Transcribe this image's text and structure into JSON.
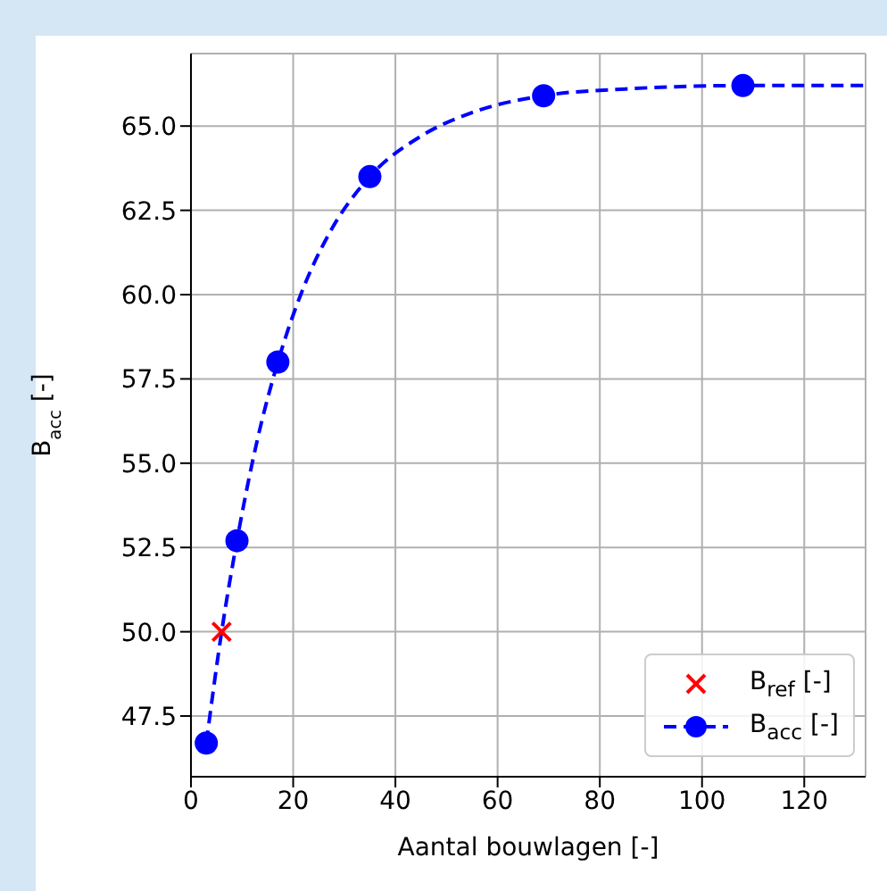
{
  "chart_data": {
    "type": "scatter",
    "xlabel": "Aantal bouwlagen [-]",
    "ylabel": "B$_{acc}$ [-]",
    "xlim": [
      0,
      132
    ],
    "xticks": [
      0,
      20,
      40,
      60,
      80,
      100,
      120
    ],
    "ylim": [
      45.7,
      67.15
    ],
    "yticks": [
      {
        "value": 47.5,
        "label": "47.5"
      },
      {
        "value": 50,
        "label": "50.0"
      },
      {
        "value": 52.5,
        "label": "52.5"
      },
      {
        "value": 55,
        "label": "55.0"
      },
      {
        "value": 57.5,
        "label": "57.5"
      },
      {
        "value": 60,
        "label": "60.0"
      },
      {
        "value": 62.5,
        "label": "62.5"
      },
      {
        "value": 65,
        "label": "65.0"
      }
    ],
    "grid": true,
    "legend": "bottom right",
    "series": [
      {
        "type": "line",
        "color": "#0000ff",
        "line_style": "dashed",
        "marker": "none",
        "x": [
          3,
          6,
          9,
          13,
          17,
          22,
          27,
          35,
          45,
          55,
          69,
          85,
          108,
          132
        ],
        "values": [
          46.7,
          50.0,
          52.7,
          55.7,
          58.0,
          60.2,
          61.8,
          63.5,
          64.7,
          65.4,
          65.9,
          66.1,
          66.2,
          66.2
        ]
      },
      {
        "name": "B$_{ref}$ [-]",
        "color": "#ff0000",
        "marker": "cross",
        "x": [
          6
        ],
        "values": [
          50.0
        ]
      },
      {
        "name": "B$_{acc}$ [-]",
        "color": "#0000ff",
        "marker": "circle",
        "line_style": "dashed",
        "x": [
          3,
          9,
          17,
          35,
          69,
          108
        ],
        "values": [
          46.7,
          52.7,
          58.0,
          63.5,
          65.9,
          66.2
        ]
      }
    ]
  }
}
